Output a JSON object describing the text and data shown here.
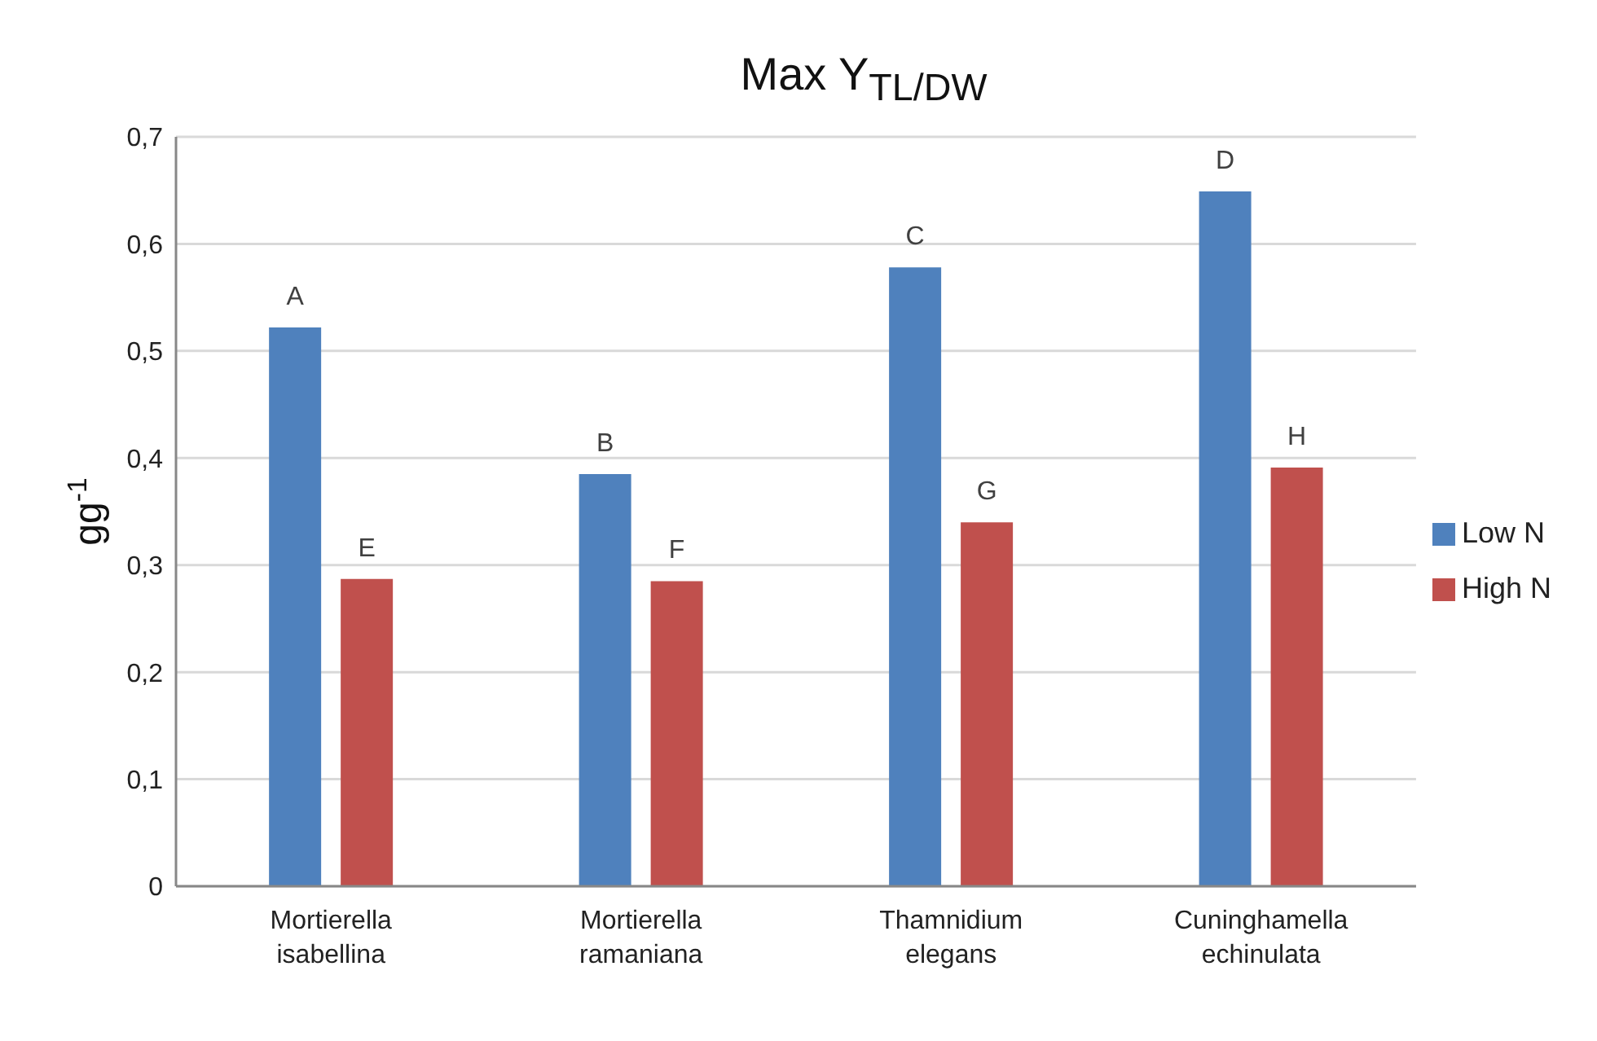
{
  "chart_data": {
    "type": "bar",
    "title": "Max Y$_{TL/DW}$",
    "ylabel": "gg$^{-1}$",
    "categories": [
      "Mortierella isabellina",
      "Mortierella ramaniana",
      "Thamnidium elegans",
      "Cuninghamella echinulata"
    ],
    "series": [
      {
        "name": "Low N",
        "color": "#4f81bd",
        "values": [
          0.522,
          0.385,
          0.578,
          0.649
        ],
        "value_labels": [
          "A",
          "B",
          "C",
          "D"
        ]
      },
      {
        "name": "High N",
        "color": "#c0504d",
        "values": [
          0.287,
          0.285,
          0.34,
          0.391
        ],
        "value_labels": [
          "E",
          "F",
          "G",
          "H"
        ]
      }
    ],
    "ylim": [
      0,
      0.7
    ],
    "yticks": [
      {
        "value": 0,
        "label": "0"
      },
      {
        "value": 0.1,
        "label": "0,1"
      },
      {
        "value": 0.2,
        "label": "0,2"
      },
      {
        "value": 0.3,
        "label": "0,3"
      },
      {
        "value": 0.4,
        "label": "0,4"
      },
      {
        "value": 0.5,
        "label": "0,5"
      },
      {
        "value": 0.6,
        "label": "0,6"
      },
      {
        "value": 0.7,
        "label": "0,7"
      }
    ],
    "grid": "y",
    "legend": "right"
  }
}
